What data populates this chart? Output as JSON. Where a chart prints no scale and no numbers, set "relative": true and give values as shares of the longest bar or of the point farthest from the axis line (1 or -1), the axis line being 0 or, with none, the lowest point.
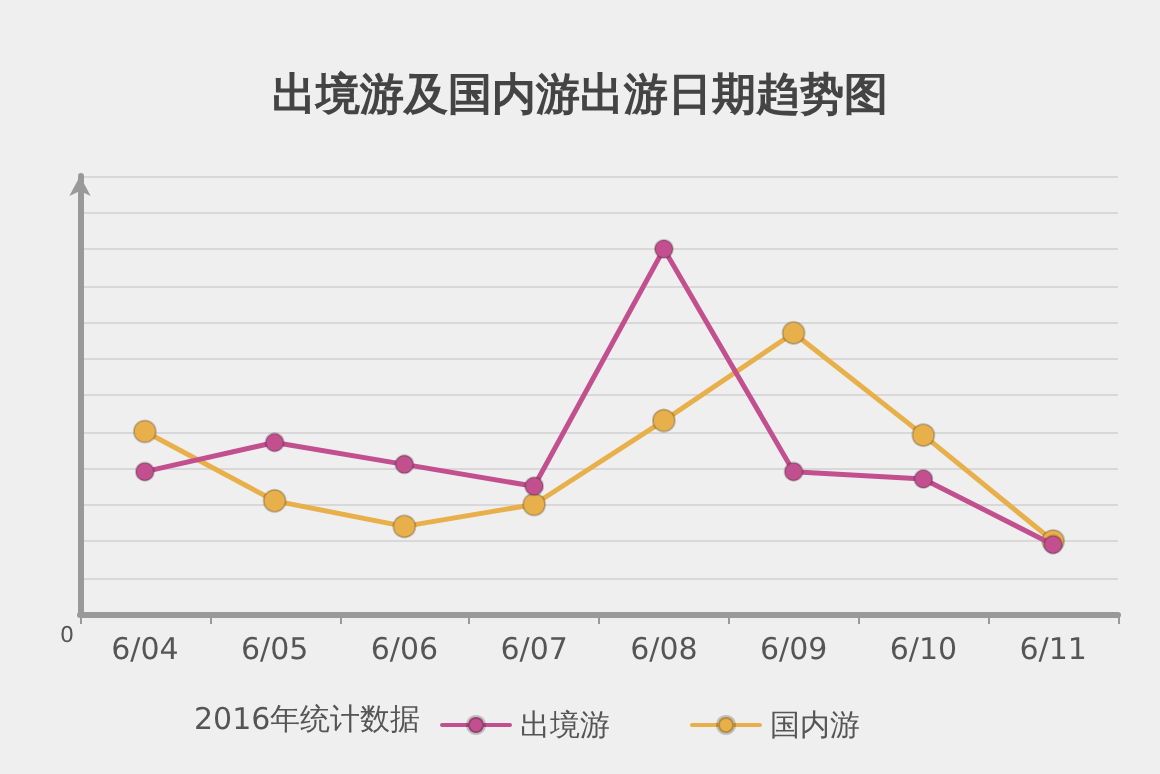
{
  "chart_data": {
    "type": "line",
    "title": "出境游及国内游出游日期趋势图",
    "categories": [
      "6/04",
      "6/05",
      "6/06",
      "6/07",
      "6/08",
      "6/09",
      "6/10",
      "6/11"
    ],
    "relative": true,
    "series": [
      {
        "name": "出境游",
        "color": "#c2508f",
        "values": [
          0.39,
          0.47,
          0.41,
          0.35,
          1,
          0.39,
          0.37,
          0.19
        ]
      },
      {
        "name": "国内游",
        "color": "#e8b04a",
        "values": [
          0.5,
          0.31,
          0.24,
          0.3,
          0.53,
          0.77,
          0.49,
          0.2
        ]
      }
    ],
    "annotations": [
      "0",
      "2016年统计数据"
    ],
    "grid": "y",
    "legend": "bottom",
    "marker": "circle",
    "line_style": "solid"
  }
}
